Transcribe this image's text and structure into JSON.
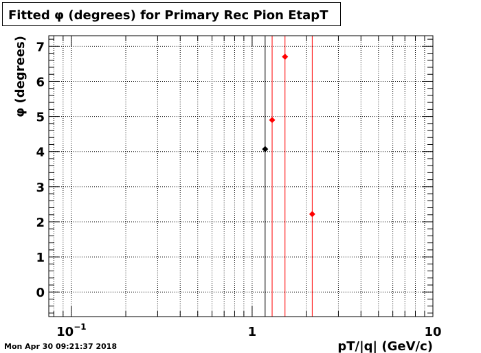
{
  "title": "Fitted φ (degrees) for Primary Rec Pion EtapT",
  "footer": "Mon Apr 30 09:21:37 2018",
  "chart_data": {
    "type": "scatter",
    "title": "Fitted φ (degrees) for Primary Rec Pion EtapT",
    "xlabel": "pT/|q| (GeV/c)",
    "ylabel": "φ (degrees)",
    "xscale": "log",
    "xlim": [
      0.075,
      10
    ],
    "ylim": [
      -0.7,
      7.3
    ],
    "grid": true,
    "x_tick_labels": [
      {
        "value": 0.1,
        "base": "10",
        "exp": "−1"
      },
      {
        "value": 1,
        "base": "1",
        "exp": ""
      },
      {
        "value": 10,
        "base": "10",
        "exp": ""
      }
    ],
    "y_ticks": [
      0,
      1,
      2,
      3,
      4,
      5,
      6,
      7
    ],
    "series": [
      {
        "color": "#000000",
        "points": [
          {
            "x": 1.18,
            "y": 4.07
          }
        ]
      },
      {
        "color": "#ff0000",
        "points": [
          {
            "x": 1.29,
            "y": 4.9
          },
          {
            "x": 1.52,
            "y": 6.7
          },
          {
            "x": 2.15,
            "y": 2.22
          }
        ]
      }
    ],
    "vertical_lines": [
      {
        "x": 1.18,
        "color": "#000000"
      },
      {
        "x": 1.29,
        "color": "#ff0000"
      },
      {
        "x": 1.52,
        "color": "#ff0000"
      },
      {
        "x": 2.15,
        "color": "#ff0000"
      }
    ]
  }
}
